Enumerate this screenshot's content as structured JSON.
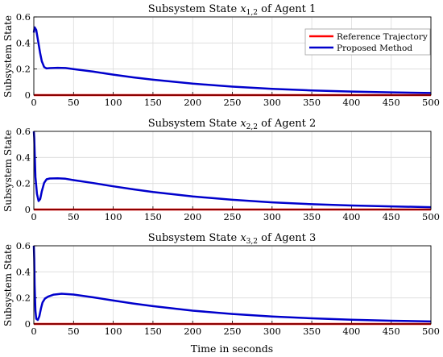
{
  "chart_data": [
    {
      "type": "line",
      "title": "Subsystem State x1,2 of Agent 1",
      "title_prefix": "Subsystem State ",
      "state_var": "x",
      "state_sub": "1,2",
      "title_suffix": " of Agent 1",
      "ylabel": "Subsystem State",
      "xlabel": "",
      "xlim": [
        0,
        500
      ],
      "ylim": [
        0,
        0.6
      ],
      "xticks": [
        "0",
        "50",
        "100",
        "150",
        "200",
        "250",
        "300",
        "350",
        "400",
        "450",
        "500"
      ],
      "yticks": [
        "0",
        "0.2",
        "0.4",
        "0.6"
      ],
      "grid": true,
      "legend": {
        "position": "top-right",
        "entries": [
          "Reference Trajectory",
          "Proposed Method"
        ]
      },
      "series": [
        {
          "name": "Reference Trajectory",
          "color": "#ff0000",
          "x": [
            0,
            500
          ],
          "y": [
            0,
            0
          ]
        },
        {
          "name": "Proposed Method",
          "color": "#0000cc",
          "x": [
            0,
            1,
            3,
            5,
            8,
            10,
            13,
            16,
            20,
            30,
            40,
            50,
            75,
            100,
            125,
            150,
            200,
            250,
            300,
            350,
            400,
            450,
            500
          ],
          "y": [
            0.48,
            0.52,
            0.5,
            0.43,
            0.32,
            0.26,
            0.215,
            0.205,
            0.207,
            0.21,
            0.208,
            0.2,
            0.18,
            0.157,
            0.136,
            0.118,
            0.088,
            0.065,
            0.048,
            0.036,
            0.027,
            0.021,
            0.016
          ]
        }
      ]
    },
    {
      "type": "line",
      "title": "Subsystem State x2,2 of Agent 2",
      "title_prefix": "Subsystem State ",
      "state_var": "x",
      "state_sub": "2,2",
      "title_suffix": " of Agent 2",
      "ylabel": "Subsystem State",
      "xlabel": "",
      "xlim": [
        0,
        500
      ],
      "ylim": [
        0,
        0.6
      ],
      "xticks": [
        "0",
        "50",
        "100",
        "150",
        "200",
        "250",
        "300",
        "350",
        "400",
        "450",
        "500"
      ],
      "yticks": [
        "0",
        "0.2",
        "0.4",
        "0.6"
      ],
      "grid": true,
      "series": [
        {
          "name": "Reference Trajectory",
          "color": "#ff0000",
          "x": [
            0,
            500
          ],
          "y": [
            0,
            0
          ]
        },
        {
          "name": "Proposed Method",
          "color": "#0000cc",
          "x": [
            0,
            0.5,
            1,
            2,
            4,
            6,
            8,
            10,
            13,
            16,
            20,
            30,
            40,
            50,
            75,
            100,
            125,
            150,
            200,
            250,
            300,
            350,
            400,
            450,
            500
          ],
          "y": [
            0.6,
            0.55,
            0.45,
            0.25,
            0.12,
            0.065,
            0.08,
            0.14,
            0.205,
            0.232,
            0.238,
            0.24,
            0.236,
            0.226,
            0.203,
            0.178,
            0.155,
            0.134,
            0.1,
            0.075,
            0.055,
            0.041,
            0.031,
            0.024,
            0.018
          ]
        }
      ]
    },
    {
      "type": "line",
      "title": "Subsystem State x3,2 of Agent 3",
      "title_prefix": "Subsystem State ",
      "state_var": "x",
      "state_sub": "3,2",
      "title_suffix": " of Agent 3",
      "ylabel": "Subsystem State",
      "xlabel": "Time in seconds",
      "xlim": [
        0,
        500
      ],
      "ylim": [
        0,
        0.6
      ],
      "xticks": [
        "0",
        "50",
        "100",
        "150",
        "200",
        "250",
        "300",
        "350",
        "400",
        "450",
        "500"
      ],
      "yticks": [
        "0",
        "0.2",
        "0.4",
        "0.6"
      ],
      "grid": true,
      "series": [
        {
          "name": "Reference Trajectory",
          "color": "#ff0000",
          "x": [
            0,
            500
          ],
          "y": [
            0,
            0
          ]
        },
        {
          "name": "Proposed Method",
          "color": "#0000cc",
          "x": [
            0,
            0.5,
            1,
            2,
            3,
            5,
            7,
            9,
            11,
            14,
            18,
            25,
            35,
            50,
            75,
            100,
            125,
            150,
            200,
            250,
            300,
            350,
            400,
            450,
            500
          ],
          "y": [
            0.6,
            0.5,
            0.3,
            0.1,
            0.04,
            0.03,
            0.06,
            0.12,
            0.165,
            0.195,
            0.21,
            0.225,
            0.232,
            0.226,
            0.204,
            0.18,
            0.157,
            0.137,
            0.102,
            0.077,
            0.057,
            0.043,
            0.032,
            0.025,
            0.019
          ]
        }
      ]
    }
  ]
}
